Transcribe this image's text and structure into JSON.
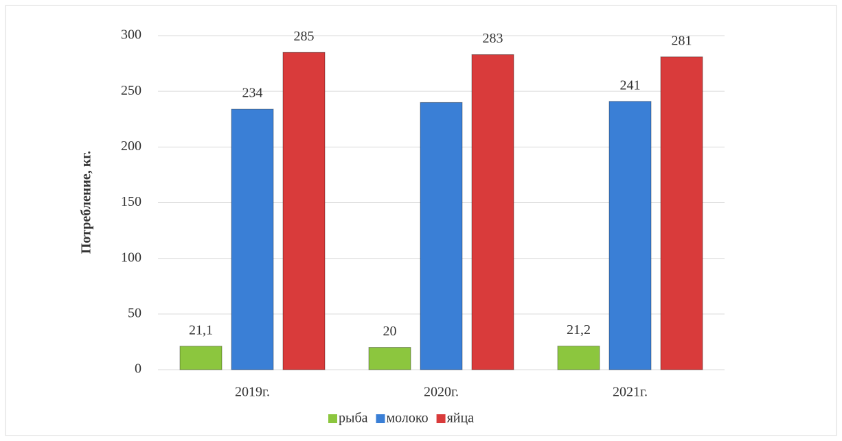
{
  "chart_data": {
    "type": "bar",
    "y_label": "Потребление, кг.",
    "categories": [
      "2019г.",
      "2020г.",
      "2021г."
    ],
    "series": [
      {
        "name": "рыба",
        "color": "#8cc63e",
        "values": [
          21.1,
          20,
          21.2
        ],
        "value_labels": [
          "21,1",
          "20",
          "21,2"
        ]
      },
      {
        "name": "молоко",
        "color": "#3a7fd6",
        "values": [
          234,
          240,
          241
        ],
        "value_labels": [
          "234",
          null,
          "241"
        ]
      },
      {
        "name": "яйца",
        "color": "#d93b3b",
        "values": [
          285,
          283,
          281
        ]
      }
    ],
    "ylim": [
      0,
      300
    ],
    "yticks": [
      0,
      50,
      100,
      150,
      200,
      250,
      300
    ],
    "grid": true,
    "legend": "bottom"
  }
}
